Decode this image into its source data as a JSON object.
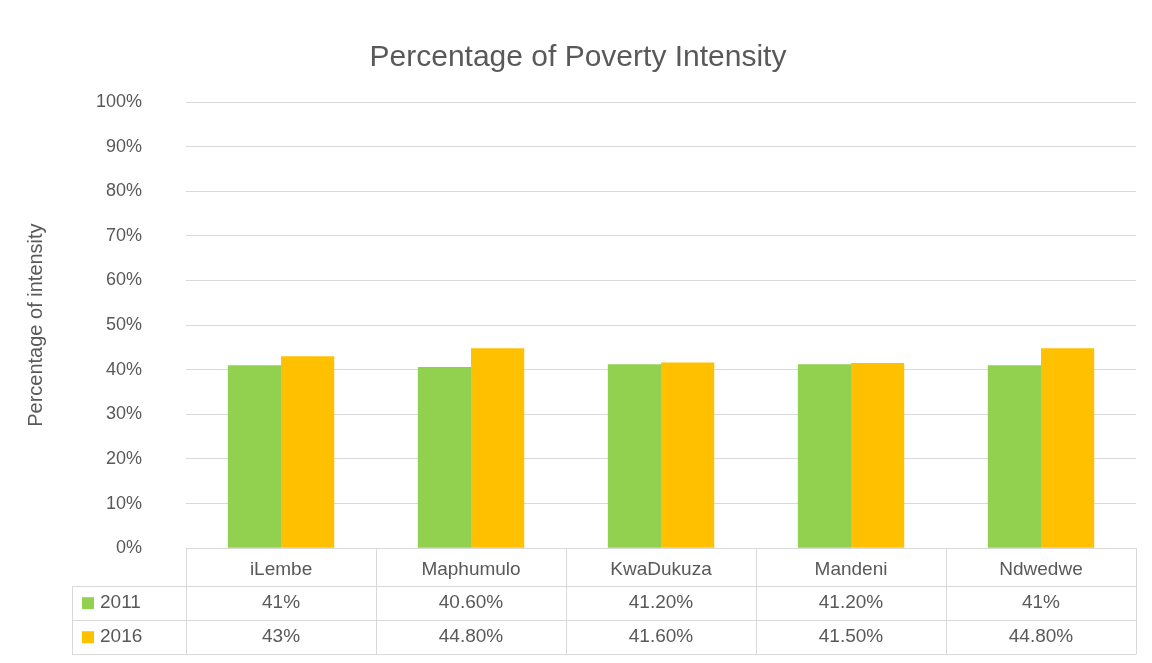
{
  "chart_data": {
    "type": "bar",
    "title": "Percentage of Poverty Intensity",
    "ylabel": "Percentage of intensity",
    "categories": [
      "iLembe",
      "Maphumulo",
      "KwaDukuza",
      "Mandeni",
      "Ndwedwe"
    ],
    "series": [
      {
        "name": "2011",
        "color": "#92d050",
        "values": [
          41,
          40.6,
          41.2,
          41.2,
          41
        ],
        "value_labels": [
          "41%",
          "40.60%",
          "41.20%",
          "41.20%",
          "41%"
        ]
      },
      {
        "name": "2016",
        "color": "#ffc000",
        "values": [
          43,
          44.8,
          41.6,
          41.5,
          44.8
        ],
        "value_labels": [
          "43%",
          "44.80%",
          "41.60%",
          "41.50%",
          "44.80%"
        ]
      }
    ],
    "ylim": [
      0,
      100
    ],
    "yticks": [
      {
        "value": 0,
        "label": "0%"
      },
      {
        "value": 10,
        "label": "10%"
      },
      {
        "value": 20,
        "label": "20%"
      },
      {
        "value": 30,
        "label": "30%"
      },
      {
        "value": 40,
        "label": "40%"
      },
      {
        "value": 50,
        "label": "50%"
      },
      {
        "value": 60,
        "label": "60%"
      },
      {
        "value": 70,
        "label": "70%"
      },
      {
        "value": 80,
        "label": "80%"
      },
      {
        "value": 90,
        "label": "90%"
      },
      {
        "value": 100,
        "label": "100%"
      }
    ],
    "grid": "y",
    "legend": "bottom left"
  }
}
